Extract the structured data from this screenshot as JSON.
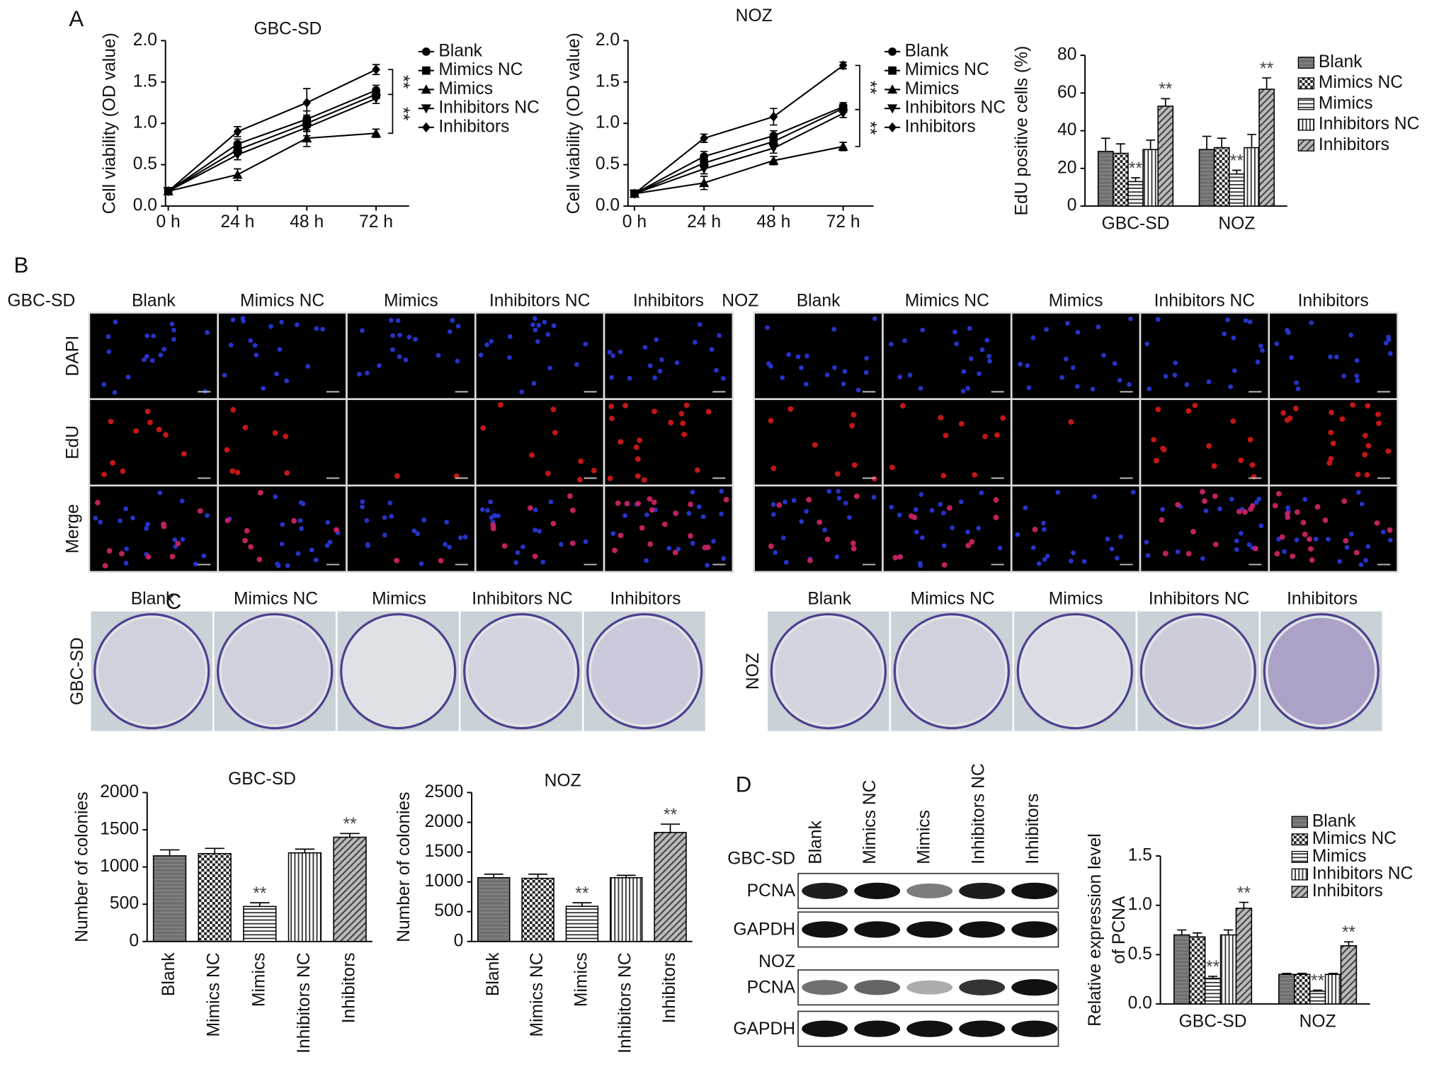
{
  "figure": {
    "panels": [
      "A",
      "B",
      "C",
      "D"
    ],
    "groups": [
      "Blank",
      "Mimics NC",
      "Mimics",
      "Inhibitors NC",
      "Inhibitors"
    ],
    "cell_lines": [
      "GBC-SD",
      "NOZ"
    ],
    "stains": [
      "DAPI",
      "EdU",
      "Merge"
    ],
    "blot_rows": [
      "PCNA",
      "GAPDH"
    ]
  },
  "chart_data": [
    {
      "type": "line",
      "title": "GBC-SD",
      "y_label": "Cell viability (OD value)",
      "categories": [
        "0 h",
        "24 h",
        "48 h",
        "72 h"
      ],
      "ylim": [
        0,
        2
      ],
      "yticks": [
        {
          "value": 0,
          "label": "0.0"
        },
        0.5,
        {
          "value": 1,
          "label": "1.0"
        },
        1.5,
        {
          "value": 2,
          "label": "2.0"
        }
      ],
      "annotations": [
        "**",
        "**"
      ],
      "series": [
        {
          "name": "Blank",
          "marker": "circle",
          "color": "#000000",
          "values": [
            0.18,
            0.75,
            1.05,
            1.4
          ],
          "errors": [
            0.02,
            0.06,
            0.1,
            0.06
          ]
        },
        {
          "name": "Mimics NC",
          "marker": "square",
          "color": "#000000",
          "values": [
            0.18,
            0.68,
            1.0,
            1.35
          ],
          "errors": [
            0.02,
            0.06,
            0.1,
            0.05
          ]
        },
        {
          "name": "Mimics",
          "marker": "triangle-up",
          "color": "#000000",
          "values": [
            0.18,
            0.38,
            0.82,
            0.88
          ],
          "errors": [
            0.02,
            0.07,
            0.1,
            0.05
          ]
        },
        {
          "name": "Inhibitors NC",
          "marker": "triangle-down",
          "color": "#000000",
          "values": [
            0.18,
            0.62,
            0.95,
            1.3
          ],
          "errors": [
            0.02,
            0.06,
            0.1,
            0.06
          ]
        },
        {
          "name": "Inhibitors",
          "marker": "diamond",
          "color": "#000000",
          "values": [
            0.18,
            0.9,
            1.25,
            1.65
          ],
          "errors": [
            0.02,
            0.06,
            0.17,
            0.06
          ]
        }
      ]
    },
    {
      "type": "line",
      "title": "NOZ",
      "y_label": "Cell viability (OD value)",
      "categories": [
        "0 h",
        "24 h",
        "48 h",
        "72 h"
      ],
      "ylim": [
        0,
        2
      ],
      "yticks": [
        {
          "value": 0,
          "label": "0.0"
        },
        0.5,
        {
          "value": 1,
          "label": "1.0"
        },
        1.5,
        {
          "value": 2,
          "label": "2.0"
        }
      ],
      "annotations": [
        "**",
        "**"
      ],
      "series": [
        {
          "name": "Blank",
          "marker": "circle",
          "color": "#000000",
          "values": [
            0.15,
            0.6,
            0.85,
            1.2
          ],
          "errors": [
            0.02,
            0.06,
            0.06,
            0.05
          ]
        },
        {
          "name": "Mimics NC",
          "marker": "square",
          "color": "#000000",
          "values": [
            0.15,
            0.52,
            0.78,
            1.18
          ],
          "errors": [
            0.02,
            0.06,
            0.06,
            0.05
          ]
        },
        {
          "name": "Mimics",
          "marker": "triangle-up",
          "color": "#000000",
          "values": [
            0.15,
            0.28,
            0.55,
            0.72
          ],
          "errors": [
            0.02,
            0.08,
            0.05,
            0.05
          ]
        },
        {
          "name": "Inhibitors NC",
          "marker": "triangle-down",
          "color": "#000000",
          "values": [
            0.15,
            0.45,
            0.7,
            1.12
          ],
          "errors": [
            0.02,
            0.06,
            0.06,
            0.05
          ]
        },
        {
          "name": "Inhibitors",
          "marker": "diamond",
          "color": "#000000",
          "values": [
            0.15,
            0.82,
            1.08,
            1.7
          ],
          "errors": [
            0.02,
            0.05,
            0.1,
            0.04
          ]
        }
      ]
    },
    {
      "type": "bar",
      "y_label": "EdU positive cells (%)",
      "categories": [
        "GBC-SD",
        "NOZ"
      ],
      "ylim": [
        0,
        80
      ],
      "yticks": [
        0,
        20,
        40,
        60,
        80
      ],
      "series": [
        {
          "name": "Blank",
          "pattern": "solid",
          "values": [
            29,
            30
          ],
          "errors": [
            7,
            7
          ],
          "significance": [
            null,
            null
          ]
        },
        {
          "name": "Mimics NC",
          "pattern": "checker",
          "values": [
            28,
            31
          ],
          "errors": [
            5,
            5
          ],
          "significance": [
            null,
            null
          ]
        },
        {
          "name": "Mimics",
          "pattern": "hlines",
          "values": [
            13,
            17
          ],
          "errors": [
            2,
            2
          ],
          "significance": [
            "**",
            "**"
          ]
        },
        {
          "name": "Inhibitors NC",
          "pattern": "vlines",
          "values": [
            30,
            31
          ],
          "errors": [
            5,
            7
          ],
          "significance": [
            null,
            null
          ]
        },
        {
          "name": "Inhibitors",
          "pattern": "diagonal",
          "values": [
            53,
            62
          ],
          "errors": [
            4,
            6
          ],
          "significance": [
            "**",
            "**"
          ]
        }
      ]
    },
    {
      "type": "bar",
      "title": "GBC-SD",
      "y_label": "Number of colonies",
      "categories": [
        "Blank",
        "Mimics NC",
        "Mimics",
        "Inhibitors NC",
        "Inhibitors"
      ],
      "values": [
        1150,
        1180,
        470,
        1190,
        1400
      ],
      "errors": [
        80,
        70,
        50,
        50,
        50
      ],
      "significance": [
        null,
        null,
        "**",
        null,
        "**"
      ],
      "patterns": [
        "solid",
        "checker",
        "hlines",
        "vlines",
        "diagonal"
      ],
      "ylim": [
        0,
        2000
      ],
      "yticks": [
        0,
        500,
        1000,
        1500,
        2000
      ]
    },
    {
      "type": "bar",
      "title": "NOZ",
      "y_label": "Number of colonies",
      "categories": [
        "Blank",
        "Mimics NC",
        "Mimics",
        "Inhibitors NC",
        "Inhibitors"
      ],
      "values": [
        1070,
        1060,
        590,
        1070,
        1830
      ],
      "errors": [
        60,
        70,
        60,
        40,
        140
      ],
      "significance": [
        null,
        null,
        "**",
        null,
        "**"
      ],
      "patterns": [
        "solid",
        "checker",
        "hlines",
        "vlines",
        "diagonal"
      ],
      "ylim": [
        0,
        2500
      ],
      "yticks": [
        0,
        500,
        1000,
        1500,
        2000,
        2500
      ]
    },
    {
      "type": "bar",
      "y_label": [
        "Relative expression level",
        "of PCNA"
      ],
      "categories": [
        "GBC-SD",
        "NOZ"
      ],
      "ylim": [
        0,
        1.5
      ],
      "yticks": [
        {
          "value": 0,
          "label": "0.0"
        },
        0.5,
        {
          "value": 1,
          "label": "1.0"
        },
        1.5
      ],
      "series": [
        {
          "name": "Blank",
          "pattern": "solid",
          "values": [
            0.7,
            0.3
          ],
          "errors": [
            0.05,
            0.01
          ],
          "significance": [
            null,
            null
          ]
        },
        {
          "name": "Mimics NC",
          "pattern": "checker",
          "values": [
            0.68,
            0.3
          ],
          "errors": [
            0.04,
            0.01
          ],
          "significance": [
            null,
            null
          ]
        },
        {
          "name": "Mimics",
          "pattern": "hlines",
          "values": [
            0.26,
            0.13
          ],
          "errors": [
            0.02,
            0.01
          ],
          "significance": [
            "**",
            "**"
          ]
        },
        {
          "name": "Inhibitors NC",
          "pattern": "vlines",
          "values": [
            0.7,
            0.3
          ],
          "errors": [
            0.05,
            0.01
          ],
          "significance": [
            null,
            null
          ]
        },
        {
          "name": "Inhibitors",
          "pattern": "diagonal",
          "values": [
            0.97,
            0.59
          ],
          "errors": [
            0.06,
            0.04
          ],
          "significance": [
            "**",
            "**"
          ]
        }
      ]
    }
  ]
}
